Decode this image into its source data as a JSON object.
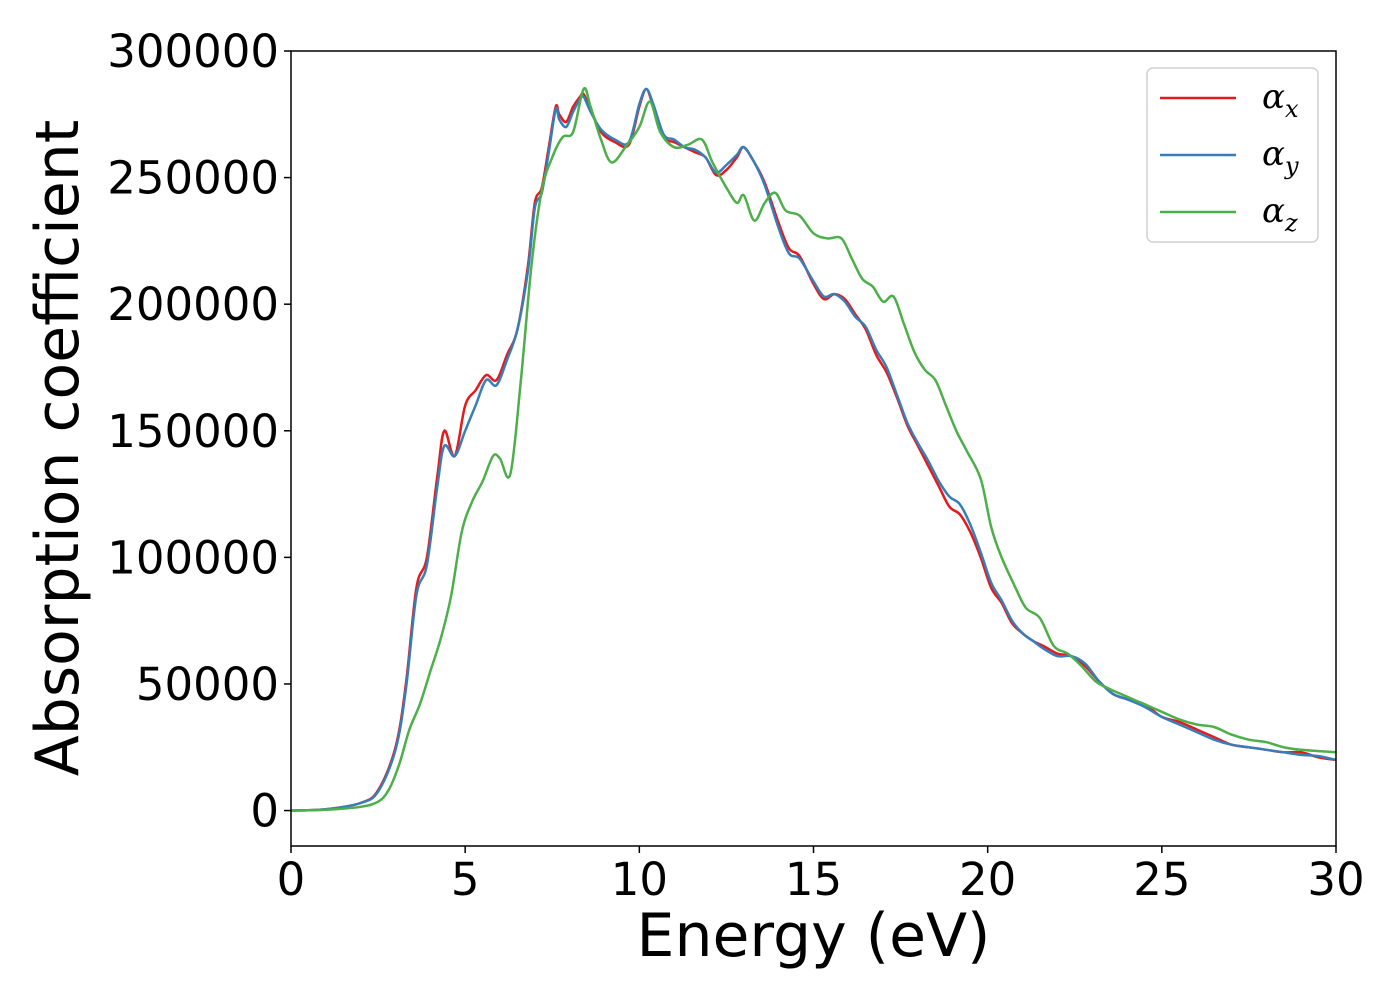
{
  "chart_data": {
    "type": "line",
    "title": "",
    "xlabel": "Energy (eV)",
    "ylabel": "Absorption coefficient",
    "xlim": [
      0,
      30
    ],
    "ylim": [
      -14000,
      300000
    ],
    "xticks": [
      0,
      5,
      10,
      15,
      20,
      25,
      30
    ],
    "yticks": [
      0,
      50000,
      100000,
      150000,
      200000,
      250000,
      300000
    ],
    "grid": false,
    "legend_position": "top-right",
    "series": [
      {
        "name": "α_x",
        "color": "#e41a1c",
        "x": [
          0,
          1,
          2,
          2.5,
          3,
          3.3,
          3.6,
          3.9,
          4.2,
          4.4,
          4.7,
          5.0,
          5.3,
          5.6,
          5.9,
          6.2,
          6.5,
          6.8,
          7.0,
          7.2,
          7.4,
          7.6,
          7.7,
          7.9,
          8.1,
          8.3,
          8.4,
          8.6,
          8.9,
          9.3,
          9.7,
          10.0,
          10.2,
          10.4,
          10.7,
          11.0,
          11.3,
          11.6,
          11.9,
          12.2,
          12.5,
          12.8,
          13.0,
          13.3,
          13.6,
          14.0,
          14.3,
          14.6,
          15.0,
          15.3,
          15.6,
          15.9,
          16.2,
          16.5,
          16.8,
          17.1,
          17.4,
          17.7,
          18.0,
          18.3,
          18.6,
          18.9,
          19.2,
          19.5,
          19.8,
          20.1,
          20.4,
          20.7,
          21.0,
          21.3,
          21.6,
          22.0,
          22.4,
          22.8,
          23.2,
          23.6,
          24.0,
          24.5,
          25.0,
          25.5,
          26.0,
          26.5,
          27.0,
          27.5,
          28.0,
          28.5,
          29.0,
          29.5,
          30.0
        ],
        "values": [
          0,
          500,
          3000,
          8000,
          25000,
          50000,
          88000,
          100000,
          132000,
          150000,
          140000,
          160000,
          166000,
          172000,
          170000,
          180000,
          190000,
          215000,
          240000,
          246000,
          262000,
          278000,
          275000,
          272000,
          278000,
          282000,
          283000,
          277000,
          268000,
          264000,
          263000,
          278000,
          285000,
          278000,
          266000,
          264000,
          262000,
          260000,
          258000,
          251000,
          253000,
          258000,
          262000,
          256000,
          248000,
          232000,
          222000,
          219000,
          208000,
          202000,
          204000,
          202000,
          196000,
          190000,
          180000,
          173000,
          163000,
          152000,
          144000,
          136000,
          128000,
          120000,
          117000,
          110000,
          100000,
          88000,
          82000,
          74000,
          70000,
          67000,
          65000,
          62000,
          61000,
          57000,
          51000,
          46000,
          44000,
          42000,
          37000,
          35000,
          32000,
          29000,
          26000,
          25000,
          24000,
          23000,
          23000,
          21000,
          20000
        ]
      },
      {
        "name": "α_y",
        "color": "#377eb8",
        "x": [
          0,
          1,
          2,
          2.5,
          3,
          3.3,
          3.6,
          3.9,
          4.2,
          4.4,
          4.7,
          5.0,
          5.3,
          5.6,
          5.9,
          6.2,
          6.5,
          6.8,
          7.0,
          7.2,
          7.4,
          7.6,
          7.7,
          7.9,
          8.1,
          8.3,
          8.4,
          8.6,
          8.9,
          9.3,
          9.7,
          10.0,
          10.2,
          10.4,
          10.7,
          11.0,
          11.3,
          11.6,
          11.9,
          12.2,
          12.5,
          12.8,
          13.0,
          13.3,
          13.6,
          14.0,
          14.3,
          14.6,
          15.0,
          15.3,
          15.6,
          15.9,
          16.2,
          16.5,
          16.8,
          17.1,
          17.4,
          17.7,
          18.0,
          18.3,
          18.6,
          18.9,
          19.2,
          19.5,
          19.8,
          20.1,
          20.4,
          20.7,
          21.0,
          21.3,
          21.6,
          22.0,
          22.4,
          22.8,
          23.2,
          23.6,
          24.0,
          24.5,
          25.0,
          25.5,
          26.0,
          26.5,
          27.0,
          27.5,
          28.0,
          28.5,
          29.0,
          29.5,
          30.0
        ],
        "values": [
          0,
          500,
          3000,
          7500,
          24000,
          48000,
          85000,
          97000,
          128000,
          144000,
          140000,
          150000,
          160000,
          170000,
          168000,
          178000,
          190000,
          213000,
          238000,
          244000,
          260000,
          277000,
          273000,
          270000,
          276000,
          281000,
          282000,
          276000,
          269000,
          265000,
          264000,
          279000,
          285000,
          279000,
          267000,
          265000,
          262000,
          261000,
          258000,
          252000,
          255000,
          259000,
          262000,
          256000,
          247000,
          230000,
          220000,
          218000,
          209000,
          203000,
          204000,
          201000,
          195000,
          191000,
          182000,
          175000,
          164000,
          153000,
          145000,
          138000,
          130000,
          124000,
          121000,
          113000,
          102000,
          90000,
          83000,
          75000,
          70000,
          67000,
          64000,
          61000,
          61000,
          58000,
          51000,
          46000,
          44000,
          41000,
          37000,
          34000,
          31000,
          28000,
          26000,
          25000,
          24000,
          23000,
          22000,
          21500,
          20000
        ]
      },
      {
        "name": "α_z",
        "color": "#4daf4a",
        "x": [
          0,
          1,
          2,
          2.5,
          2.8,
          3.1,
          3.4,
          3.7,
          4.0,
          4.3,
          4.6,
          4.9,
          5.2,
          5.5,
          5.8,
          6.0,
          6.3,
          6.6,
          6.9,
          7.2,
          7.5,
          7.8,
          8.1,
          8.4,
          8.6,
          8.9,
          9.2,
          9.6,
          10.0,
          10.3,
          10.6,
          11.0,
          11.4,
          11.8,
          12.1,
          12.5,
          12.8,
          13.0,
          13.3,
          13.6,
          13.9,
          14.2,
          14.6,
          15.0,
          15.4,
          15.8,
          16.1,
          16.4,
          16.7,
          17.0,
          17.3,
          17.6,
          17.9,
          18.2,
          18.5,
          18.8,
          19.1,
          19.4,
          19.8,
          20.1,
          20.4,
          20.8,
          21.1,
          21.5,
          21.9,
          22.3,
          22.7,
          23.1,
          23.5,
          24.0,
          24.5,
          25.0,
          25.5,
          26.0,
          26.5,
          27.0,
          27.5,
          28.0,
          28.5,
          29.0,
          29.5,
          30.0
        ],
        "values": [
          0,
          300,
          1500,
          3500,
          8000,
          18000,
          32000,
          42000,
          55000,
          68000,
          85000,
          110000,
          122000,
          130000,
          140000,
          139000,
          133000,
          170000,
          215000,
          245000,
          258000,
          266000,
          268000,
          285000,
          278000,
          265000,
          256000,
          262000,
          270000,
          280000,
          268000,
          262000,
          263000,
          265000,
          256000,
          246000,
          240000,
          243000,
          233000,
          240000,
          244000,
          237000,
          235000,
          228000,
          226000,
          226000,
          218000,
          210000,
          207000,
          201000,
          203000,
          192000,
          181000,
          174000,
          170000,
          160000,
          150000,
          142000,
          131000,
          112000,
          100000,
          88000,
          80000,
          76000,
          65000,
          62000,
          57000,
          51000,
          48000,
          45000,
          42000,
          39000,
          36000,
          34000,
          33000,
          30000,
          28000,
          27000,
          25000,
          24000,
          23500,
          23000
        ]
      }
    ]
  }
}
